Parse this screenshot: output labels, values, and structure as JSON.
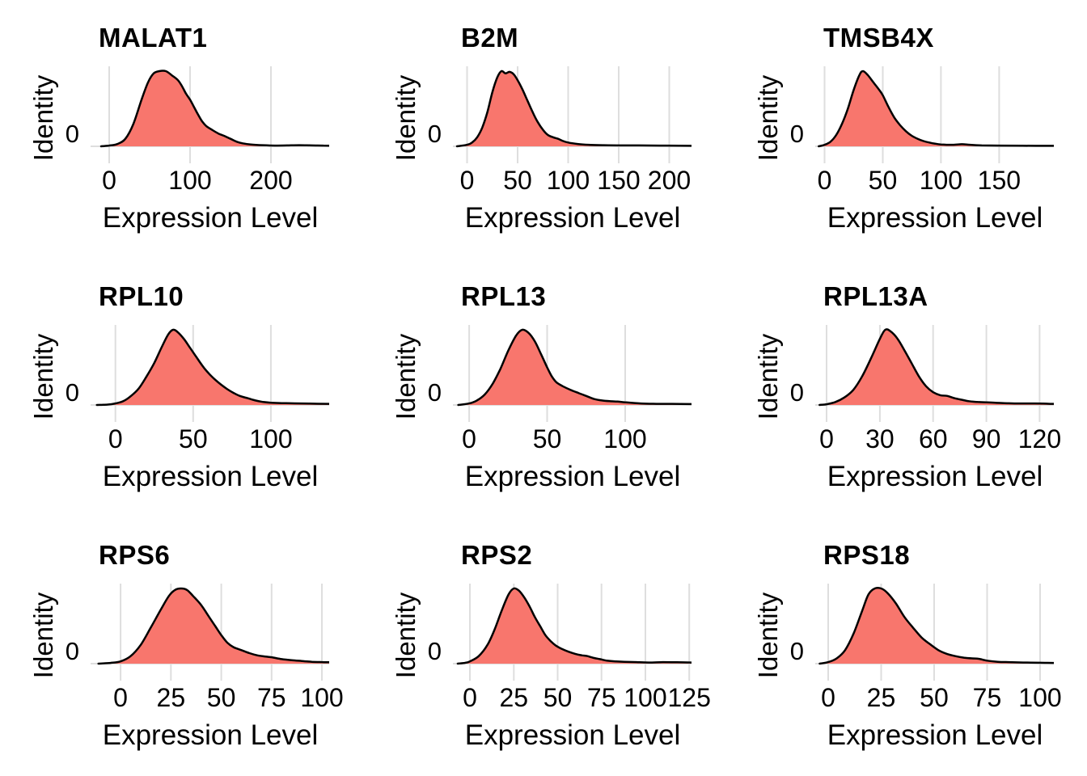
{
  "figure": {
    "background": "#ffffff",
    "text_color": "#000000",
    "colors": {
      "density_fill": "#F8766D",
      "density_line": "#000000",
      "gridline": "#DEDEDE"
    }
  },
  "chart_data": [
    {
      "type": "area",
      "title": "MALAT1",
      "xlabel": "Expression Level",
      "ylabel": "Identity",
      "ytick_label": "0",
      "grid": true,
      "xlim": [
        -23,
        272
      ],
      "xticks": [
        0,
        100,
        200
      ],
      "points": [
        [
          -10,
          0
        ],
        [
          0,
          0.01
        ],
        [
          10,
          0.03
        ],
        [
          20,
          0.1
        ],
        [
          30,
          0.3
        ],
        [
          40,
          0.62
        ],
        [
          48,
          0.85
        ],
        [
          55,
          0.97
        ],
        [
          62,
          1
        ],
        [
          70,
          1
        ],
        [
          78,
          0.94
        ],
        [
          85,
          0.88
        ],
        [
          90,
          0.8
        ],
        [
          95,
          0.7
        ],
        [
          100,
          0.62
        ],
        [
          105,
          0.52
        ],
        [
          110,
          0.42
        ],
        [
          115,
          0.33
        ],
        [
          120,
          0.27
        ],
        [
          127,
          0.22
        ],
        [
          135,
          0.17
        ],
        [
          142,
          0.14
        ],
        [
          150,
          0.1
        ],
        [
          158,
          0.06
        ],
        [
          165,
          0.04
        ],
        [
          175,
          0.025
        ],
        [
          190,
          0.015
        ],
        [
          205,
          0.01
        ],
        [
          220,
          0.012
        ],
        [
          235,
          0.015
        ],
        [
          250,
          0.012
        ],
        [
          265,
          0.01
        ],
        [
          272,
          0.008
        ]
      ]
    },
    {
      "type": "area",
      "title": "B2M",
      "xlabel": "Expression Level",
      "ylabel": "Identity",
      "ytick_label": "0",
      "grid": true,
      "xlim": [
        -14,
        222
      ],
      "xticks": [
        0,
        50,
        100,
        150,
        200
      ],
      "points": [
        [
          -10,
          0
        ],
        [
          0,
          0.02
        ],
        [
          5,
          0.05
        ],
        [
          10,
          0.12
        ],
        [
          15,
          0.25
        ],
        [
          20,
          0.45
        ],
        [
          25,
          0.72
        ],
        [
          30,
          0.92
        ],
        [
          34,
          1
        ],
        [
          38,
          0.97
        ],
        [
          42,
          0.99
        ],
        [
          46,
          0.96
        ],
        [
          50,
          0.88
        ],
        [
          55,
          0.75
        ],
        [
          60,
          0.6
        ],
        [
          65,
          0.45
        ],
        [
          70,
          0.32
        ],
        [
          75,
          0.22
        ],
        [
          80,
          0.15
        ],
        [
          85,
          0.12
        ],
        [
          90,
          0.1
        ],
        [
          95,
          0.07
        ],
        [
          100,
          0.05
        ],
        [
          110,
          0.03
        ],
        [
          120,
          0.02
        ],
        [
          135,
          0.015
        ],
        [
          150,
          0.012
        ],
        [
          170,
          0.012
        ],
        [
          190,
          0.01
        ],
        [
          210,
          0.008
        ],
        [
          222,
          0.006
        ]
      ]
    },
    {
      "type": "area",
      "title": "TMSB4X",
      "xlabel": "Expression Level",
      "ylabel": "Identity",
      "ytick_label": "0",
      "grid": true,
      "xlim": [
        -8,
        197
      ],
      "xticks": [
        0,
        50,
        100,
        150
      ],
      "points": [
        [
          -5,
          0
        ],
        [
          0,
          0.02
        ],
        [
          5,
          0.06
        ],
        [
          10,
          0.15
        ],
        [
          15,
          0.3
        ],
        [
          20,
          0.5
        ],
        [
          25,
          0.75
        ],
        [
          30,
          0.95
        ],
        [
          33,
          1
        ],
        [
          37,
          0.95
        ],
        [
          42,
          0.85
        ],
        [
          47,
          0.75
        ],
        [
          50,
          0.68
        ],
        [
          55,
          0.52
        ],
        [
          60,
          0.38
        ],
        [
          65,
          0.28
        ],
        [
          70,
          0.2
        ],
        [
          75,
          0.14
        ],
        [
          80,
          0.1
        ],
        [
          85,
          0.07
        ],
        [
          90,
          0.05
        ],
        [
          95,
          0.035
        ],
        [
          100,
          0.025
        ],
        [
          110,
          0.02
        ],
        [
          118,
          0.028
        ],
        [
          125,
          0.02
        ],
        [
          135,
          0.012
        ],
        [
          150,
          0.01
        ],
        [
          170,
          0.008
        ],
        [
          197,
          0.006
        ]
      ]
    },
    {
      "type": "area",
      "title": "RPL10",
      "xlabel": "Expression Level",
      "ylabel": "Identity",
      "ytick_label": "0",
      "grid": true,
      "xlim": [
        -16,
        137.5
      ],
      "xticks": [
        0,
        50,
        100
      ],
      "points": [
        [
          -12,
          0
        ],
        [
          -5,
          0.005
        ],
        [
          0,
          0.02
        ],
        [
          5,
          0.05
        ],
        [
          10,
          0.12
        ],
        [
          15,
          0.22
        ],
        [
          20,
          0.38
        ],
        [
          25,
          0.56
        ],
        [
          30,
          0.78
        ],
        [
          34,
          0.94
        ],
        [
          37,
          1
        ],
        [
          40,
          0.97
        ],
        [
          44,
          0.88
        ],
        [
          48,
          0.76
        ],
        [
          52,
          0.64
        ],
        [
          56,
          0.52
        ],
        [
          60,
          0.42
        ],
        [
          64,
          0.34
        ],
        [
          68,
          0.27
        ],
        [
          72,
          0.21
        ],
        [
          76,
          0.16
        ],
        [
          80,
          0.12
        ],
        [
          85,
          0.09
        ],
        [
          90,
          0.06
        ],
        [
          95,
          0.04
        ],
        [
          100,
          0.03
        ],
        [
          107,
          0.025
        ],
        [
          115,
          0.022
        ],
        [
          125,
          0.018
        ],
        [
          137.5,
          0.015
        ]
      ]
    },
    {
      "type": "area",
      "title": "RPL13",
      "xlabel": "Expression Level",
      "ylabel": "Identity",
      "ytick_label": "0",
      "grid": true,
      "xlim": [
        -10.4,
        142.5
      ],
      "xticks": [
        0,
        50,
        100
      ],
      "points": [
        [
          -7,
          0
        ],
        [
          0,
          0.02
        ],
        [
          5,
          0.06
        ],
        [
          10,
          0.14
        ],
        [
          15,
          0.28
        ],
        [
          20,
          0.48
        ],
        [
          25,
          0.72
        ],
        [
          30,
          0.92
        ],
        [
          34,
          1
        ],
        [
          38,
          0.96
        ],
        [
          42,
          0.85
        ],
        [
          46,
          0.68
        ],
        [
          50,
          0.5
        ],
        [
          53,
          0.38
        ],
        [
          56,
          0.3
        ],
        [
          60,
          0.25
        ],
        [
          65,
          0.2
        ],
        [
          70,
          0.16
        ],
        [
          75,
          0.12
        ],
        [
          80,
          0.08
        ],
        [
          85,
          0.06
        ],
        [
          90,
          0.05
        ],
        [
          95,
          0.045
        ],
        [
          100,
          0.035
        ],
        [
          110,
          0.02
        ],
        [
          120,
          0.015
        ],
        [
          130,
          0.015
        ],
        [
          142.5,
          0.012
        ]
      ]
    },
    {
      "type": "area",
      "title": "RPL13A",
      "xlabel": "Expression Level",
      "ylabel": "Identity",
      "ytick_label": "0",
      "grid": true,
      "xlim": [
        -6.4,
        128
      ],
      "xticks": [
        0,
        30,
        60,
        90,
        120
      ],
      "points": [
        [
          -4,
          0
        ],
        [
          0,
          0.01
        ],
        [
          5,
          0.04
        ],
        [
          10,
          0.1
        ],
        [
          15,
          0.2
        ],
        [
          20,
          0.38
        ],
        [
          25,
          0.62
        ],
        [
          30,
          0.88
        ],
        [
          33,
          1
        ],
        [
          36,
          0.98
        ],
        [
          40,
          0.88
        ],
        [
          44,
          0.72
        ],
        [
          48,
          0.55
        ],
        [
          52,
          0.38
        ],
        [
          56,
          0.25
        ],
        [
          60,
          0.17
        ],
        [
          64,
          0.13
        ],
        [
          68,
          0.12
        ],
        [
          72,
          0.09
        ],
        [
          76,
          0.07
        ],
        [
          80,
          0.05
        ],
        [
          85,
          0.04
        ],
        [
          90,
          0.035
        ],
        [
          95,
          0.03
        ],
        [
          100,
          0.025
        ],
        [
          108,
          0.02
        ],
        [
          115,
          0.02
        ],
        [
          122,
          0.018
        ],
        [
          128,
          0.015
        ]
      ]
    },
    {
      "type": "area",
      "title": "RPS6",
      "xlabel": "Expression Level",
      "ylabel": "Identity",
      "ytick_label": "0",
      "grid": true,
      "xlim": [
        -14.9,
        103.6
      ],
      "xticks": [
        0,
        25,
        50,
        75,
        100
      ],
      "points": [
        [
          -11,
          0
        ],
        [
          -5,
          0.01
        ],
        [
          0,
          0.03
        ],
        [
          5,
          0.1
        ],
        [
          10,
          0.25
        ],
        [
          15,
          0.48
        ],
        [
          20,
          0.72
        ],
        [
          24,
          0.9
        ],
        [
          27,
          0.98
        ],
        [
          30,
          1
        ],
        [
          33,
          0.98
        ],
        [
          36,
          0.9
        ],
        [
          40,
          0.78
        ],
        [
          44,
          0.62
        ],
        [
          47,
          0.5
        ],
        [
          50,
          0.38
        ],
        [
          53,
          0.28
        ],
        [
          56,
          0.22
        ],
        [
          60,
          0.18
        ],
        [
          64,
          0.14
        ],
        [
          68,
          0.11
        ],
        [
          72,
          0.095
        ],
        [
          75,
          0.085
        ],
        [
          80,
          0.06
        ],
        [
          85,
          0.045
        ],
        [
          90,
          0.035
        ],
        [
          95,
          0.025
        ],
        [
          100,
          0.02
        ],
        [
          103.6,
          0.018
        ]
      ]
    },
    {
      "type": "area",
      "title": "RPS2",
      "xlabel": "Expression Level",
      "ylabel": "Identity",
      "ytick_label": "0",
      "grid": true,
      "xlim": [
        -9.7,
        126.3
      ],
      "xticks": [
        0,
        25,
        50,
        75,
        100,
        125
      ],
      "points": [
        [
          -7,
          0
        ],
        [
          -3,
          0.01
        ],
        [
          0,
          0.03
        ],
        [
          5,
          0.1
        ],
        [
          10,
          0.25
        ],
        [
          14,
          0.45
        ],
        [
          18,
          0.7
        ],
        [
          22,
          0.92
        ],
        [
          25,
          1
        ],
        [
          28,
          0.97
        ],
        [
          31,
          0.88
        ],
        [
          34,
          0.76
        ],
        [
          37,
          0.62
        ],
        [
          40,
          0.5
        ],
        [
          43,
          0.38
        ],
        [
          46,
          0.3
        ],
        [
          49,
          0.24
        ],
        [
          52,
          0.2
        ],
        [
          56,
          0.16
        ],
        [
          60,
          0.13
        ],
        [
          64,
          0.11
        ],
        [
          67,
          0.1
        ],
        [
          70,
          0.08
        ],
        [
          74,
          0.06
        ],
        [
          78,
          0.04
        ],
        [
          83,
          0.03
        ],
        [
          88,
          0.025
        ],
        [
          95,
          0.02
        ],
        [
          102,
          0.015
        ],
        [
          110,
          0.02
        ],
        [
          118,
          0.018
        ],
        [
          126.3,
          0.015
        ]
      ]
    },
    {
      "type": "area",
      "title": "RPS18",
      "xlabel": "Expression Level",
      "ylabel": "Identity",
      "ytick_label": "0",
      "grid": true,
      "xlim": [
        -6.1,
        106.5
      ],
      "xticks": [
        0,
        25,
        50,
        75,
        100
      ],
      "points": [
        [
          -4,
          0
        ],
        [
          0,
          0.02
        ],
        [
          4,
          0.07
        ],
        [
          8,
          0.18
        ],
        [
          12,
          0.4
        ],
        [
          16,
          0.7
        ],
        [
          19,
          0.92
        ],
        [
          22,
          1
        ],
        [
          25,
          1
        ],
        [
          28,
          0.94
        ],
        [
          32,
          0.8
        ],
        [
          36,
          0.62
        ],
        [
          40,
          0.48
        ],
        [
          44,
          0.35
        ],
        [
          48,
          0.26
        ],
        [
          52,
          0.18
        ],
        [
          56,
          0.13
        ],
        [
          60,
          0.1
        ],
        [
          64,
          0.08
        ],
        [
          68,
          0.07
        ],
        [
          71,
          0.065
        ],
        [
          75,
          0.04
        ],
        [
          80,
          0.025
        ],
        [
          85,
          0.02
        ],
        [
          92,
          0.015
        ],
        [
          100,
          0.012
        ],
        [
          106.5,
          0.01
        ]
      ]
    }
  ]
}
